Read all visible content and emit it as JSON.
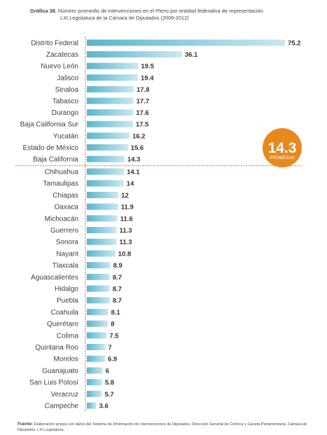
{
  "header": {
    "label": "Gráfica 38.",
    "line1": "Número promedio de intervenciones en el Pleno por entidad federativa de representación",
    "line2": "LXI Legislatura de la Cámara de Diputados (2009-2012)"
  },
  "average": {
    "value": "14.3",
    "label": "PROMEDIO"
  },
  "footer": {
    "label": "Fuente:",
    "text": "Elaboración propia con datos del Sistema de Información de Intervenciones de Diputados, Dirección General de Crónica y Gaceta Parlamentaria, Cámara de Diputados, LXI Legislatura."
  },
  "chart_data": {
    "type": "bar",
    "orientation": "horizontal",
    "categories": [
      "Distrito Federal",
      "Zacatecas",
      "Nuevo León",
      "Jalisco",
      "Sinaloa",
      "Tabasco",
      "Durango",
      "Baja California Sur",
      "Yucatán",
      "Estado de México",
      "Baja California",
      "Chihuahua",
      "Tamaulipas",
      "Chiapas",
      "Oaxaca",
      "Michoacán",
      "Guerrero",
      "Sonora",
      "Nayarit",
      "Tlaxcala",
      "Aguascalientes",
      "Hidalgo",
      "Puebla",
      "Coahuila",
      "Querétaro",
      "Colima",
      "Quintana Roo",
      "Morelos",
      "Guanajuato",
      "San Luis Potosí",
      "Veracruz",
      "Campeche"
    ],
    "values": [
      75.2,
      36.1,
      19.5,
      19.4,
      17.8,
      17.7,
      17.6,
      17.5,
      16.2,
      15.6,
      14.3,
      14.1,
      14,
      12,
      11.9,
      11.6,
      11.3,
      11.3,
      10.8,
      8.9,
      8.7,
      8.7,
      8.7,
      8.1,
      8,
      7.5,
      7,
      6.9,
      6,
      5.8,
      5.7,
      3.6
    ],
    "data_labels": [
      "75.2",
      "36.1",
      "19.5",
      "19.4",
      "17.8",
      "17.7",
      "17.6",
      "17.5",
      "16.2",
      "15.6",
      "14.3",
      "14.1",
      "14",
      "12",
      "11.9",
      "11.6",
      "11.3",
      "11.3",
      "10.8",
      "8.9",
      "8.7",
      "8.7",
      "8.7",
      "8.1",
      "8",
      "7.5",
      "7",
      "6.9",
      "6",
      "5.8",
      "5.7",
      "3.6"
    ],
    "reference_line": 14.3,
    "colors": {
      "bar_start": "#5bb5cc",
      "bar_end": "#c9e8f1",
      "accent": "#e6891e",
      "axis": "#c0392b"
    },
    "grid": false
  }
}
